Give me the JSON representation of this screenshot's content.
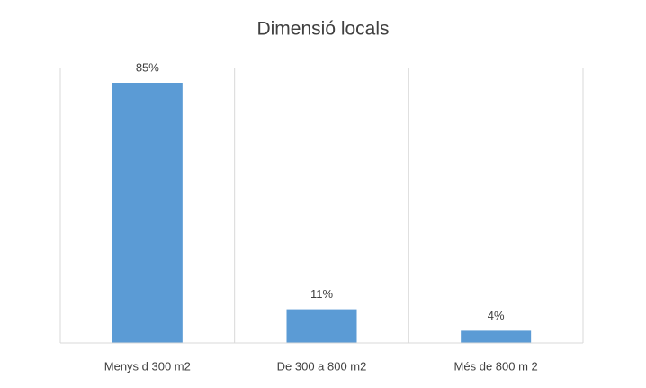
{
  "chart_data": {
    "type": "bar",
    "title": "Dimensió locals",
    "categories": [
      "Menys d 300 m2",
      "De 300 a 800 m2",
      "Més de 800 m 2"
    ],
    "values": [
      85,
      11,
      4
    ],
    "value_labels": [
      "85%",
      "11%",
      "4%"
    ],
    "color": "#5b9bd5",
    "ylim": [
      0,
      90
    ]
  }
}
